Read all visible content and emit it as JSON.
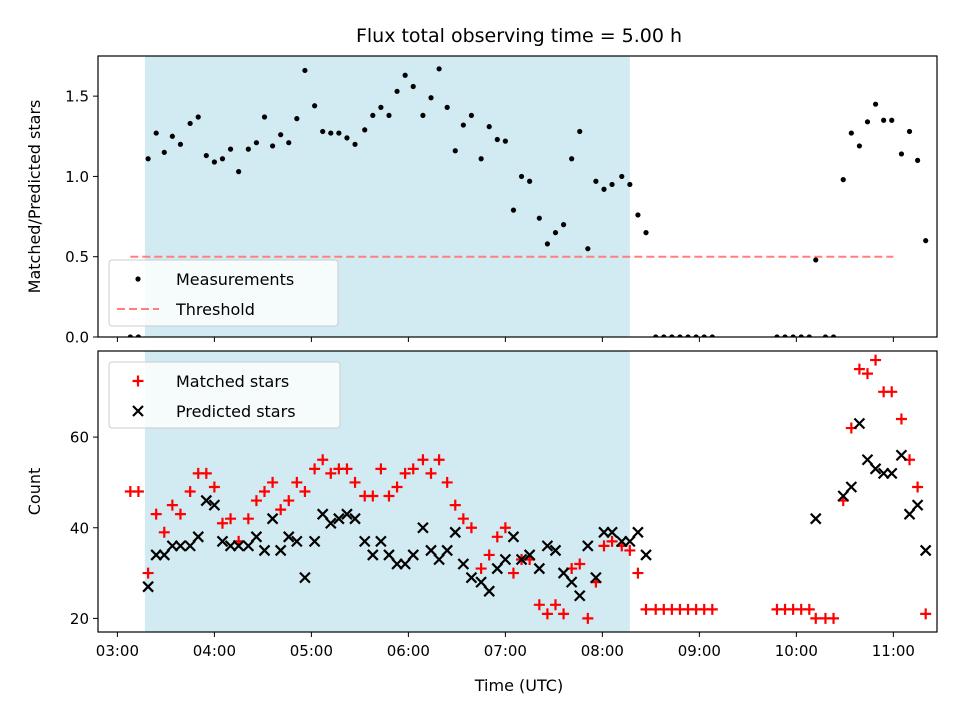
{
  "title": "Flux total observing time = 5.00 h",
  "xlabel": "Time (UTC)",
  "x_ticks": [
    "03:00",
    "04:00",
    "05:00",
    "06:00",
    "07:00",
    "08:00",
    "09:00",
    "10:00",
    "11:00"
  ],
  "colors": {
    "shade": "#add8e6",
    "measurement": "#000000",
    "threshold": "#ff7f7f",
    "matched": "#ff0000",
    "predicted": "#000000"
  },
  "chart_data": [
    {
      "type": "scatter",
      "ylabel": "Matched/Predicted stars",
      "ylim": [
        0,
        1.75
      ],
      "y_ticks": [
        "0.0",
        "0.5",
        "1.0",
        "1.5"
      ],
      "xlim": [
        "02:48",
        "11:27"
      ],
      "observing_window": [
        "03:17",
        "08:17"
      ],
      "legend": {
        "placement": "lower-left",
        "entries": [
          "Measurements",
          "Threshold"
        ]
      },
      "threshold": {
        "name": "Threshold",
        "value": 0.5,
        "x_range": [
          "03:08",
          "11:00"
        ]
      },
      "series": [
        {
          "name": "Measurements",
          "marker": "dot",
          "points": [
            [
              "03:08",
              0.0
            ],
            [
              "03:13",
              0.0
            ],
            [
              "03:19",
              1.11
            ],
            [
              "03:24",
              1.27
            ],
            [
              "03:29",
              1.15
            ],
            [
              "03:34",
              1.25
            ],
            [
              "03:39",
              1.2
            ],
            [
              "03:45",
              1.33
            ],
            [
              "03:50",
              1.37
            ],
            [
              "03:55",
              1.13
            ],
            [
              "04:00",
              1.09
            ],
            [
              "04:05",
              1.11
            ],
            [
              "04:10",
              1.17
            ],
            [
              "04:15",
              1.03
            ],
            [
              "04:21",
              1.17
            ],
            [
              "04:26",
              1.21
            ],
            [
              "04:31",
              1.37
            ],
            [
              "04:36",
              1.19
            ],
            [
              "04:41",
              1.26
            ],
            [
              "04:46",
              1.21
            ],
            [
              "04:51",
              1.36
            ],
            [
              "04:56",
              1.66
            ],
            [
              "05:02",
              1.44
            ],
            [
              "05:07",
              1.28
            ],
            [
              "05:12",
              1.27
            ],
            [
              "05:17",
              1.27
            ],
            [
              "05:22",
              1.24
            ],
            [
              "05:27",
              1.2
            ],
            [
              "05:33",
              1.29
            ],
            [
              "05:38",
              1.38
            ],
            [
              "05:43",
              1.43
            ],
            [
              "05:48",
              1.38
            ],
            [
              "05:53",
              1.53
            ],
            [
              "05:58",
              1.63
            ],
            [
              "06:03",
              1.56
            ],
            [
              "06:09",
              1.38
            ],
            [
              "06:14",
              1.49
            ],
            [
              "06:19",
              1.67
            ],
            [
              "06:24",
              1.43
            ],
            [
              "06:29",
              1.16
            ],
            [
              "06:34",
              1.32
            ],
            [
              "06:39",
              1.38
            ],
            [
              "06:45",
              1.11
            ],
            [
              "06:50",
              1.31
            ],
            [
              "06:55",
              1.23
            ],
            [
              "07:00",
              1.22
            ],
            [
              "07:05",
              0.79
            ],
            [
              "07:10",
              1.0
            ],
            [
              "07:15",
              0.97
            ],
            [
              "07:21",
              0.74
            ],
            [
              "07:26",
              0.58
            ],
            [
              "07:31",
              0.65
            ],
            [
              "07:36",
              0.7
            ],
            [
              "07:41",
              1.11
            ],
            [
              "07:46",
              1.28
            ],
            [
              "07:51",
              0.55
            ],
            [
              "07:56",
              0.97
            ],
            [
              "08:01",
              0.92
            ],
            [
              "08:06",
              0.95
            ],
            [
              "08:12",
              1.0
            ],
            [
              "08:17",
              0.95
            ],
            [
              "08:22",
              0.76
            ],
            [
              "08:27",
              0.65
            ],
            [
              "08:33",
              0.0
            ],
            [
              "08:38",
              0.0
            ],
            [
              "08:43",
              0.0
            ],
            [
              "08:48",
              0.0
            ],
            [
              "08:53",
              0.0
            ],
            [
              "08:58",
              0.0
            ],
            [
              "09:03",
              0.0
            ],
            [
              "09:08",
              0.0
            ],
            [
              "09:48",
              0.0
            ],
            [
              "09:53",
              0.0
            ],
            [
              "09:58",
              0.0
            ],
            [
              "10:03",
              0.0
            ],
            [
              "10:08",
              0.0
            ],
            [
              "10:12",
              0.48
            ],
            [
              "10:18",
              0.0
            ],
            [
              "10:23",
              0.0
            ],
            [
              "10:29",
              0.98
            ],
            [
              "10:34",
              1.27
            ],
            [
              "10:39",
              1.19
            ],
            [
              "10:44",
              1.34
            ],
            [
              "10:49",
              1.45
            ],
            [
              "10:54",
              1.35
            ],
            [
              "10:59",
              1.35
            ],
            [
              "11:05",
              1.14
            ],
            [
              "11:10",
              1.28
            ],
            [
              "11:15",
              1.1
            ],
            [
              "11:20",
              0.6
            ]
          ]
        }
      ]
    },
    {
      "type": "scatter",
      "ylabel": "Count",
      "ylim": [
        17,
        79
      ],
      "y_ticks": [
        "20",
        "40",
        "60"
      ],
      "xlim": [
        "02:48",
        "11:27"
      ],
      "observing_window": [
        "03:17",
        "08:17"
      ],
      "legend": {
        "placement": "top-left",
        "entries": [
          "Matched stars",
          "Predicted stars"
        ]
      },
      "series": [
        {
          "name": "Matched stars",
          "marker": "plus",
          "points": [
            [
              "03:08",
              48
            ],
            [
              "03:13",
              48
            ],
            [
              "03:19",
              30
            ],
            [
              "03:24",
              43
            ],
            [
              "03:29",
              39
            ],
            [
              "03:34",
              45
            ],
            [
              "03:39",
              43
            ],
            [
              "03:45",
              48
            ],
            [
              "03:50",
              52
            ],
            [
              "03:55",
              52
            ],
            [
              "04:00",
              49
            ],
            [
              "04:05",
              41
            ],
            [
              "04:10",
              42
            ],
            [
              "04:15",
              37
            ],
            [
              "04:21",
              42
            ],
            [
              "04:26",
              46
            ],
            [
              "04:31",
              48
            ],
            [
              "04:36",
              50
            ],
            [
              "04:41",
              44
            ],
            [
              "04:46",
              46
            ],
            [
              "04:51",
              50
            ],
            [
              "04:56",
              48
            ],
            [
              "05:02",
              53
            ],
            [
              "05:07",
              55
            ],
            [
              "05:12",
              52
            ],
            [
              "05:17",
              53
            ],
            [
              "05:22",
              53
            ],
            [
              "05:27",
              50
            ],
            [
              "05:33",
              47
            ],
            [
              "05:38",
              47
            ],
            [
              "05:43",
              53
            ],
            [
              "05:48",
              47
            ],
            [
              "05:53",
              49
            ],
            [
              "05:58",
              52
            ],
            [
              "06:03",
              53
            ],
            [
              "06:09",
              55
            ],
            [
              "06:14",
              52
            ],
            [
              "06:19",
              55
            ],
            [
              "06:24",
              50
            ],
            [
              "06:29",
              45
            ],
            [
              "06:34",
              42
            ],
            [
              "06:39",
              40
            ],
            [
              "06:45",
              31
            ],
            [
              "06:50",
              34
            ],
            [
              "06:55",
              38
            ],
            [
              "07:00",
              40
            ],
            [
              "07:05",
              30
            ],
            [
              "07:10",
              33
            ],
            [
              "07:15",
              33
            ],
            [
              "07:21",
              23
            ],
            [
              "07:26",
              21
            ],
            [
              "07:31",
              23
            ],
            [
              "07:36",
              21
            ],
            [
              "07:41",
              31
            ],
            [
              "07:46",
              32
            ],
            [
              "07:51",
              20
            ],
            [
              "07:56",
              28
            ],
            [
              "08:01",
              36
            ],
            [
              "08:06",
              37
            ],
            [
              "08:12",
              36
            ],
            [
              "08:17",
              35
            ],
            [
              "08:22",
              30
            ],
            [
              "08:27",
              22
            ],
            [
              "08:33",
              22
            ],
            [
              "08:38",
              22
            ],
            [
              "08:43",
              22
            ],
            [
              "08:48",
              22
            ],
            [
              "08:53",
              22
            ],
            [
              "08:58",
              22
            ],
            [
              "09:03",
              22
            ],
            [
              "09:08",
              22
            ],
            [
              "09:48",
              22
            ],
            [
              "09:53",
              22
            ],
            [
              "09:58",
              22
            ],
            [
              "10:03",
              22
            ],
            [
              "10:08",
              22
            ],
            [
              "10:12",
              20
            ],
            [
              "10:18",
              20
            ],
            [
              "10:23",
              20
            ],
            [
              "10:29",
              46
            ],
            [
              "10:34",
              62
            ],
            [
              "10:39",
              75
            ],
            [
              "10:44",
              74
            ],
            [
              "10:49",
              77
            ],
            [
              "10:54",
              70
            ],
            [
              "10:59",
              70
            ],
            [
              "11:05",
              64
            ],
            [
              "11:10",
              55
            ],
            [
              "11:15",
              49
            ],
            [
              "11:20",
              21
            ]
          ]
        },
        {
          "name": "Predicted stars",
          "marker": "x",
          "points": [
            [
              "03:19",
              27
            ],
            [
              "03:24",
              34
            ],
            [
              "03:29",
              34
            ],
            [
              "03:34",
              36
            ],
            [
              "03:39",
              36
            ],
            [
              "03:45",
              36
            ],
            [
              "03:50",
              38
            ],
            [
              "03:55",
              46
            ],
            [
              "04:00",
              45
            ],
            [
              "04:05",
              37
            ],
            [
              "04:10",
              36
            ],
            [
              "04:15",
              36
            ],
            [
              "04:21",
              36
            ],
            [
              "04:26",
              38
            ],
            [
              "04:31",
              35
            ],
            [
              "04:36",
              42
            ],
            [
              "04:41",
              35
            ],
            [
              "04:46",
              38
            ],
            [
              "04:51",
              37
            ],
            [
              "04:56",
              29
            ],
            [
              "05:02",
              37
            ],
            [
              "05:07",
              43
            ],
            [
              "05:12",
              41
            ],
            [
              "05:17",
              42
            ],
            [
              "05:22",
              43
            ],
            [
              "05:27",
              42
            ],
            [
              "05:33",
              37
            ],
            [
              "05:38",
              34
            ],
            [
              "05:43",
              37
            ],
            [
              "05:48",
              34
            ],
            [
              "05:53",
              32
            ],
            [
              "05:58",
              32
            ],
            [
              "06:03",
              34
            ],
            [
              "06:09",
              40
            ],
            [
              "06:14",
              35
            ],
            [
              "06:19",
              33
            ],
            [
              "06:24",
              35
            ],
            [
              "06:29",
              39
            ],
            [
              "06:34",
              32
            ],
            [
              "06:39",
              29
            ],
            [
              "06:45",
              28
            ],
            [
              "06:50",
              26
            ],
            [
              "06:55",
              31
            ],
            [
              "07:00",
              33
            ],
            [
              "07:05",
              38
            ],
            [
              "07:10",
              33
            ],
            [
              "07:15",
              34
            ],
            [
              "07:21",
              31
            ],
            [
              "07:26",
              36
            ],
            [
              "07:31",
              35
            ],
            [
              "07:36",
              30
            ],
            [
              "07:41",
              28
            ],
            [
              "07:46",
              25
            ],
            [
              "07:51",
              36
            ],
            [
              "07:56",
              29
            ],
            [
              "08:01",
              39
            ],
            [
              "08:06",
              39
            ],
            [
              "08:12",
              37
            ],
            [
              "08:17",
              37
            ],
            [
              "08:22",
              39
            ],
            [
              "08:27",
              34
            ],
            [
              "10:12",
              42
            ],
            [
              "10:29",
              47
            ],
            [
              "10:34",
              49
            ],
            [
              "10:39",
              63
            ],
            [
              "10:44",
              55
            ],
            [
              "10:49",
              53
            ],
            [
              "10:54",
              52
            ],
            [
              "10:59",
              52
            ],
            [
              "11:05",
              56
            ],
            [
              "11:10",
              43
            ],
            [
              "11:15",
              45
            ],
            [
              "11:20",
              35
            ]
          ]
        }
      ]
    }
  ]
}
